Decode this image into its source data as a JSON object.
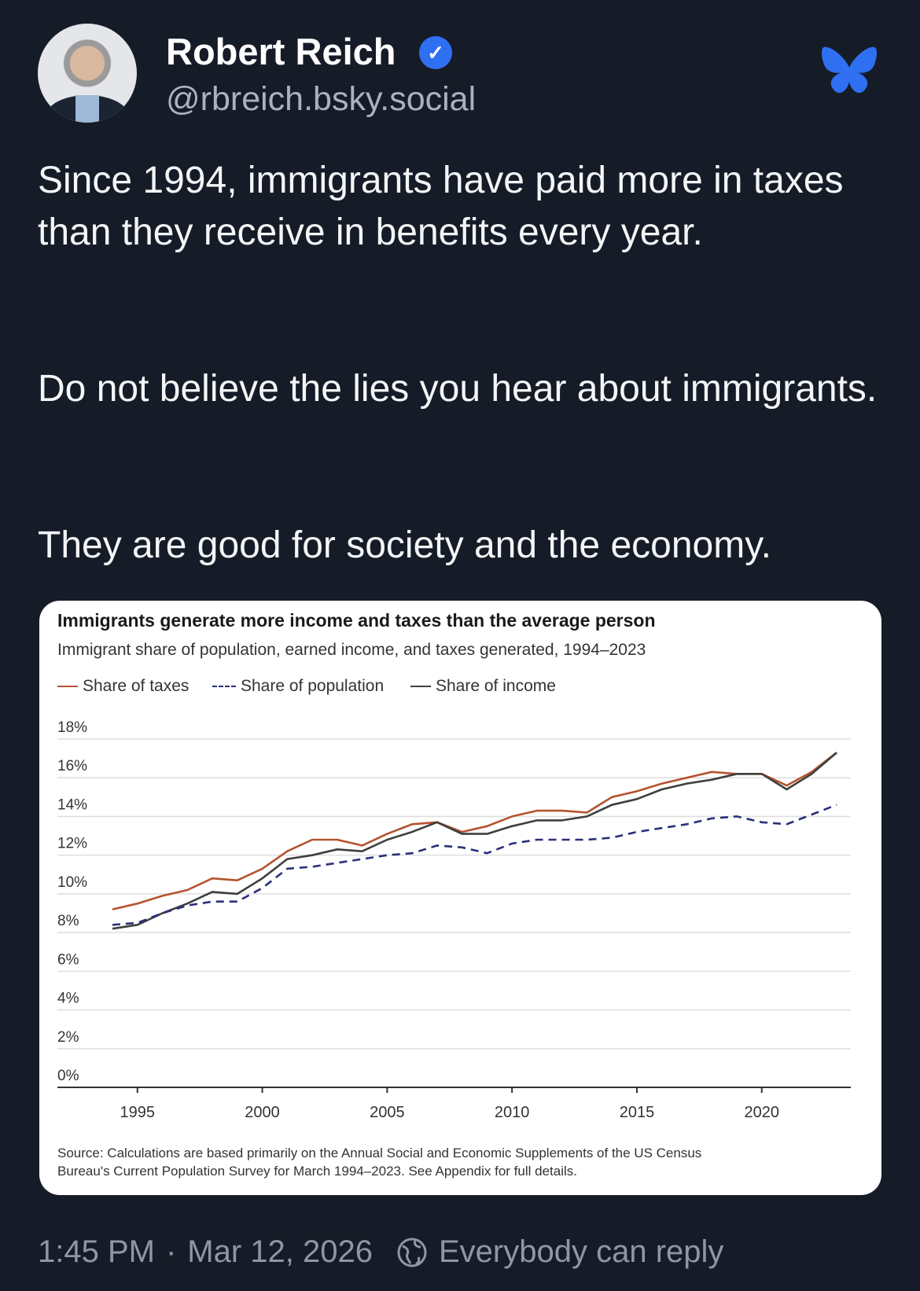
{
  "author": {
    "name": "Robert Reich",
    "handle": "@rbreich.bsky.social",
    "verified": true
  },
  "post": {
    "paragraphs": [
      "Since 1994, immigrants have paid more in taxes than they receive in benefits every year.",
      "Do not believe the lies you hear about immigrants.",
      "They are good for society and the economy."
    ]
  },
  "footer": {
    "time": "1:45 PM",
    "separator": "·",
    "date": "Mar 12, 2026",
    "reply_setting": "Everybody can reply"
  },
  "icons": {
    "verified": "check-badge-icon",
    "logo": "bluesky-butterfly-icon",
    "reply": "globe-icon"
  },
  "colors": {
    "background": "#161c27",
    "accent": "#2f6ff2",
    "taxes": "#b5532f",
    "population": "#2a2f7a",
    "income": "#3e403c"
  },
  "chart_data": {
    "type": "line",
    "title": "Immigrants generate more income and taxes than the average person",
    "subtitle": "Immigrant share of population, earned income, and taxes generated, 1994–2023",
    "legend_position": "top-left",
    "x": [
      1994,
      1995,
      1996,
      1997,
      1998,
      1999,
      2000,
      2001,
      2002,
      2003,
      2004,
      2005,
      2006,
      2007,
      2008,
      2009,
      2010,
      2011,
      2012,
      2013,
      2014,
      2015,
      2016,
      2017,
      2018,
      2019,
      2020,
      2021,
      2022,
      2023
    ],
    "x_ticks": [
      "1995",
      "2000",
      "2005",
      "2010",
      "2015",
      "2020"
    ],
    "y_ticks": [
      "0%",
      "2%",
      "4%",
      "6%",
      "8%",
      "10%",
      "12%",
      "14%",
      "16%",
      "18%"
    ],
    "ylim": [
      0,
      18
    ],
    "grid": true,
    "series": [
      {
        "name": "Share of taxes",
        "style": "solid",
        "values": [
          9.2,
          9.5,
          9.9,
          10.2,
          10.8,
          10.7,
          11.3,
          12.2,
          12.8,
          12.8,
          12.5,
          13.1,
          13.6,
          13.7,
          13.2,
          13.5,
          14.0,
          14.3,
          14.3,
          14.2,
          15.0,
          15.3,
          15.7,
          16.0,
          16.3,
          16.2,
          16.2,
          15.6,
          16.3,
          17.3
        ]
      },
      {
        "name": "Share of population",
        "style": "dashed",
        "values": [
          8.4,
          8.5,
          9.0,
          9.4,
          9.6,
          9.6,
          10.3,
          11.3,
          11.4,
          11.6,
          11.8,
          12.0,
          12.1,
          12.5,
          12.4,
          12.1,
          12.6,
          12.8,
          12.8,
          12.8,
          12.9,
          13.2,
          13.4,
          13.6,
          13.9,
          14.0,
          13.7,
          13.6,
          14.1,
          14.6
        ]
      },
      {
        "name": "Share of income",
        "style": "solid",
        "values": [
          8.2,
          8.4,
          9.0,
          9.5,
          10.1,
          10.0,
          10.8,
          11.8,
          12.0,
          12.3,
          12.2,
          12.8,
          13.2,
          13.7,
          13.1,
          13.1,
          13.5,
          13.8,
          13.8,
          14.0,
          14.6,
          14.9,
          15.4,
          15.7,
          15.9,
          16.2,
          16.2,
          15.4,
          16.2,
          17.3
        ]
      }
    ],
    "source": [
      "Source: Calculations are based primarily on the Annual Social and Economic Supplements of the US Census",
      "Bureau's Current Population Survey for March 1994–2023. See Appendix for full details."
    ]
  }
}
